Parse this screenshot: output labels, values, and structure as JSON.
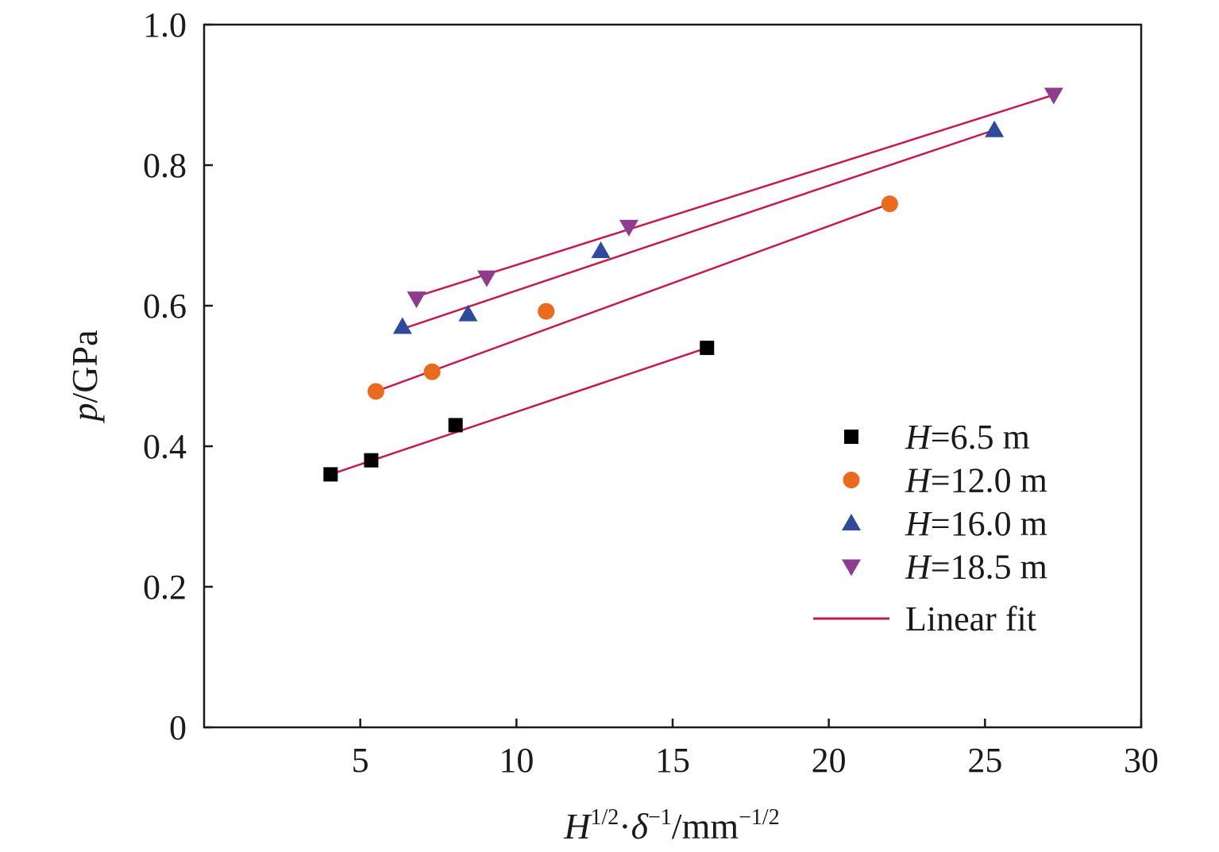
{
  "chart_data": {
    "type": "scatter",
    "x_label": {
      "base": "H",
      "sup1": "1/2",
      "mid": "·",
      "base2": "δ",
      "sup2": "−1",
      "unit": "/mm",
      "sup3": "−1/2"
    },
    "y_label": {
      "var": "p",
      "unit": "/GPa"
    },
    "xlim": [
      0,
      30
    ],
    "ylim": [
      0,
      1.0
    ],
    "x_ticks": [
      5,
      10,
      15,
      20,
      25,
      30
    ],
    "y_ticks": [
      0,
      0.2,
      0.4,
      0.6,
      0.8,
      1.0
    ],
    "x_tick_labels": [
      "5",
      "10",
      "15",
      "20",
      "25",
      "30"
    ],
    "y_tick_labels": [
      "0",
      "0.2",
      "0.4",
      "0.6",
      "0.8",
      "1.0"
    ],
    "series": [
      {
        "name": "=6.5 m",
        "name_var": "H",
        "marker": "square",
        "color": "#000000",
        "x": [
          4.05,
          5.35,
          8.05,
          16.1
        ],
        "y": [
          0.36,
          0.38,
          0.43,
          0.54
        ],
        "fit": {
          "x": [
            4.05,
            16.1
          ],
          "y": [
            0.36,
            0.54
          ]
        }
      },
      {
        "name": "=12.0 m",
        "name_var": "H",
        "marker": "circle",
        "color": "#ea6a1e",
        "x": [
          5.5,
          7.3,
          10.95,
          21.95
        ],
        "y": [
          0.478,
          0.506,
          0.592,
          0.745
        ],
        "fit": {
          "x": [
            5.5,
            21.95
          ],
          "y": [
            0.478,
            0.745
          ]
        }
      },
      {
        "name": "=16.0 m",
        "name_var": "H",
        "marker": "triangle-up",
        "color": "#2e4a9c",
        "x": [
          6.35,
          8.45,
          12.7,
          25.3
        ],
        "y": [
          0.57,
          0.588,
          0.678,
          0.85
        ],
        "fit": {
          "x": [
            6.35,
            25.3
          ],
          "y": [
            0.567,
            0.85
          ]
        }
      },
      {
        "name": "=18.5 m",
        "name_var": "H",
        "marker": "triangle-down",
        "color": "#8e3d8e",
        "x": [
          6.8,
          9.05,
          13.6,
          27.2
        ],
        "y": [
          0.61,
          0.64,
          0.712,
          0.9
        ],
        "fit": {
          "x": [
            6.8,
            27.2
          ],
          "y": [
            0.613,
            0.9
          ]
        }
      }
    ],
    "fit_line": {
      "name": "Linear fit",
      "color": "#c8194f"
    },
    "legend_position": "bottom-right",
    "grid": false
  }
}
